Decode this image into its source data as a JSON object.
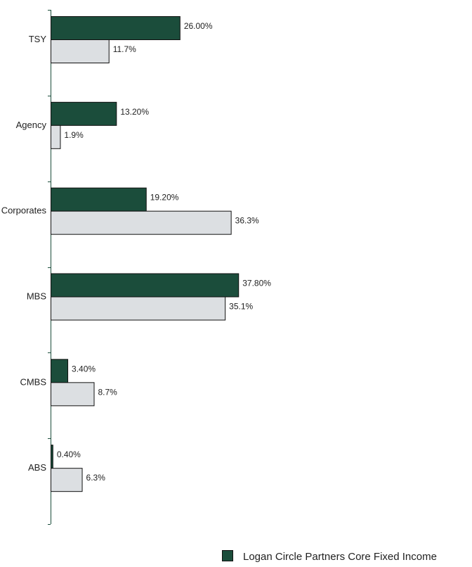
{
  "chart_data": {
    "type": "bar",
    "orientation": "horizontal",
    "categories": [
      "TSY",
      "Agency",
      "Corporates",
      "MBS",
      "CMBS",
      "ABS"
    ],
    "series": [
      {
        "name": "Logan Circle Partners Core Fixed Income",
        "color": "#1b4d3b",
        "values": [
          26.0,
          13.2,
          19.2,
          37.8,
          3.4,
          0.4
        ],
        "labels": [
          "26.00%",
          "13.20%",
          "19.20%",
          "37.80%",
          "3.40%",
          "0.40%"
        ]
      },
      {
        "color": "#dcdfe2",
        "values": [
          11.7,
          1.9,
          36.3,
          35.1,
          8.7,
          6.3
        ],
        "labels": [
          "11.7%",
          "1.9%",
          "36.3%",
          "35.1%",
          "8.7%",
          "6.3%"
        ]
      }
    ],
    "xlim": [
      0,
      60
    ],
    "grid": false,
    "legend_position": "bottom-right"
  }
}
